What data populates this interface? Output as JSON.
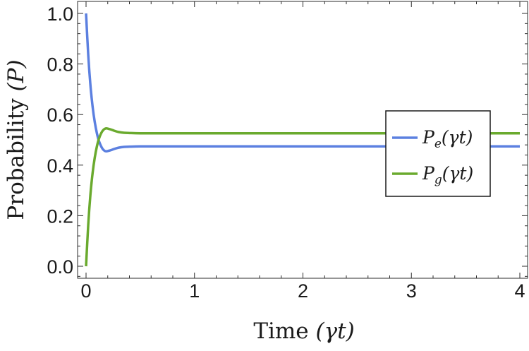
{
  "chart_data": {
    "type": "line",
    "xlabel": "Time (γt)",
    "ylabel": "Probability (P)",
    "xlim": [
      0,
      4
    ],
    "ylim": [
      -0.05,
      1.05
    ],
    "x_ticks": [
      "0",
      "1",
      "2",
      "3",
      "4"
    ],
    "y_ticks": [
      "0.0",
      "0.2",
      "0.4",
      "0.6",
      "0.8",
      "1.0"
    ],
    "legend_position": "right",
    "grid": false,
    "series": [
      {
        "name": "Pe(γt)",
        "color": "#5c80e0",
        "x": [
          0,
          0.02,
          0.04,
          0.06,
          0.08,
          0.1,
          0.12,
          0.15,
          0.18,
          0.22,
          0.26,
          0.3,
          0.35,
          0.4,
          0.5,
          0.7,
          1,
          1.5,
          2,
          2.5,
          3,
          3.5,
          4
        ],
        "y": [
          1.0,
          0.837,
          0.718,
          0.633,
          0.571,
          0.526,
          0.494,
          0.466,
          0.455,
          0.458,
          0.464,
          0.469,
          0.472,
          0.473,
          0.474,
          0.474,
          0.474,
          0.474,
          0.474,
          0.474,
          0.474,
          0.474,
          0.474
        ]
      },
      {
        "name": "Pg(γt)",
        "color": "#6aaa2e",
        "x": [
          0,
          0.02,
          0.04,
          0.06,
          0.08,
          0.1,
          0.12,
          0.15,
          0.18,
          0.22,
          0.26,
          0.3,
          0.35,
          0.4,
          0.5,
          0.7,
          1,
          1.5,
          2,
          2.5,
          3,
          3.5,
          4
        ],
        "y": [
          0.0,
          0.163,
          0.282,
          0.367,
          0.429,
          0.474,
          0.506,
          0.534,
          0.545,
          0.542,
          0.536,
          0.531,
          0.528,
          0.527,
          0.526,
          0.526,
          0.526,
          0.526,
          0.526,
          0.526,
          0.526,
          0.526,
          0.526
        ]
      }
    ]
  },
  "legend": {
    "pe_symbol": "P",
    "pe_sub": "e",
    "pe_arg": "(γt)",
    "pg_symbol": "P",
    "pg_sub": "g",
    "pg_arg": "(γt)"
  },
  "labels": {
    "x_main": "Time ",
    "x_var": "(γt)",
    "y_main": "Probability ",
    "y_var": "(P)"
  }
}
